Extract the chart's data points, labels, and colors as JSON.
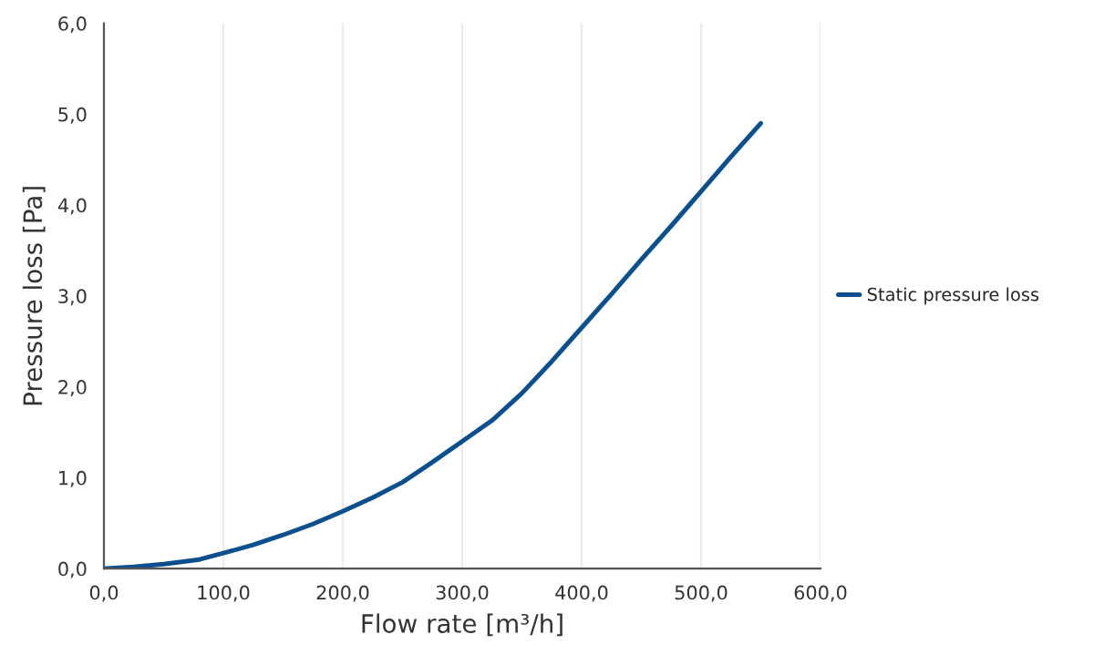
{
  "chart_data": {
    "type": "line",
    "xlabel": "Flow rate [m³/h]",
    "ylabel": "Pressure loss [Pa]",
    "series": [
      {
        "name": "Static pressure loss",
        "color": "#0b4f8f",
        "x": [
          0,
          25,
          50,
          80,
          100,
          125,
          150,
          175,
          200,
          225,
          250,
          275,
          300,
          325,
          350,
          375,
          400,
          425,
          450,
          475,
          500,
          525,
          550
        ],
        "values": [
          0,
          0.02,
          0.05,
          0.1,
          0.17,
          0.26,
          0.37,
          0.49,
          0.63,
          0.78,
          0.95,
          1.17,
          1.4,
          1.63,
          1.93,
          2.28,
          2.65,
          3.02,
          3.4,
          3.77,
          4.15,
          4.53,
          4.9
        ]
      }
    ],
    "xlim": [
      0,
      600
    ],
    "ylim": [
      0,
      6
    ],
    "xticks": [
      {
        "value": 0,
        "label": "0,0"
      },
      {
        "value": 100,
        "label": "100,0"
      },
      {
        "value": 200,
        "label": "200,0"
      },
      {
        "value": 300,
        "label": "300,0"
      },
      {
        "value": 400,
        "label": "400,0"
      },
      {
        "value": 500,
        "label": "500,0"
      },
      {
        "value": 600,
        "label": "600,0"
      }
    ],
    "yticks": [
      {
        "value": 0,
        "label": "0,0"
      },
      {
        "value": 1,
        "label": "1,0"
      },
      {
        "value": 2,
        "label": "2,0"
      },
      {
        "value": 3,
        "label": "3,0"
      },
      {
        "value": 4,
        "label": "4,0"
      },
      {
        "value": 5,
        "label": "5,0"
      },
      {
        "value": 6,
        "label": "6,0"
      }
    ],
    "grid": "x",
    "legend": "right",
    "marker": "none",
    "line_style": "solid"
  }
}
